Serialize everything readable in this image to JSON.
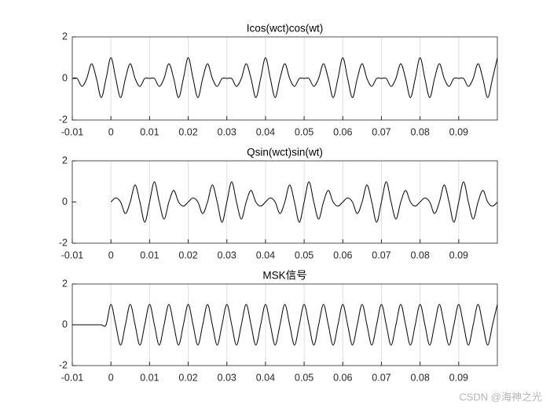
{
  "chart_data": [
    {
      "type": "line",
      "title": "Icos(wct)cos(wt)",
      "x": [
        -0.01,
        -0.00875,
        -0.0075,
        -0.00625,
        -0.005,
        -0.00375,
        -0.0025,
        -0.00125,
        0,
        0.00125,
        0.0025,
        0.00375,
        0.005,
        0.00625,
        0.0075,
        0.00875,
        0.01,
        0.01125,
        0.0125,
        0.01375,
        0.015,
        0.01625,
        0.0175,
        0.01875,
        0.02,
        0.02125,
        0.0225,
        0.02375,
        0.025,
        0.02625,
        0.0275,
        0.02875,
        0.03,
        0.03125,
        0.0325,
        0.03375,
        0.035,
        0.03625,
        0.0375,
        0.03875,
        0.04,
        0.04125,
        0.0425,
        0.04375,
        0.045,
        0.04625,
        0.0475,
        0.04875,
        0.05,
        0.05125,
        0.0525,
        0.05375,
        0.055,
        0.05625,
        0.0575,
        0.05875,
        0.06,
        0.06125,
        0.0625,
        0.06375,
        0.065,
        0.06625,
        0.0675,
        0.06875,
        0.07,
        0.07125,
        0.0725,
        0.07375,
        0.075,
        0.07625,
        0.0775,
        0.07875,
        0.08,
        0.08125,
        0.0825,
        0.08375,
        0.085,
        0.08625,
        0.0875,
        0.08875,
        0.09,
        0.09125,
        0.0925,
        0.09375,
        0.095,
        0.09625,
        0.0975,
        0.09875,
        0.1
      ],
      "series": [
        {
          "color": "#000000",
          "values": [
            0,
            0,
            -0.38,
            0,
            0.71,
            0,
            -0.92,
            0,
            1,
            0,
            -0.92,
            0,
            0.71,
            0,
            -0.38,
            0,
            0,
            0,
            -0.38,
            0,
            0.71,
            0,
            -0.92,
            0,
            1,
            0,
            -0.92,
            0,
            0.71,
            0,
            -0.38,
            0,
            0,
            0,
            -0.38,
            0,
            0.71,
            0,
            -0.92,
            0,
            1,
            0,
            -0.92,
            0,
            0.71,
            0,
            -0.38,
            0,
            0,
            0,
            -0.38,
            0,
            0.71,
            0,
            -0.92,
            0,
            1,
            0,
            -0.92,
            0,
            0.71,
            0,
            -0.38,
            0,
            0,
            0,
            -0.38,
            0,
            0.71,
            0,
            -0.92,
            0,
            1,
            0,
            -0.92,
            0,
            0.71,
            0,
            -0.38,
            0,
            0,
            0,
            -0.38,
            0,
            0.71,
            0,
            -0.92,
            0,
            1
          ]
        }
      ],
      "xlim": [
        -0.01,
        0.1
      ],
      "ylim": [
        -2,
        2
      ],
      "xticks": [
        -0.01,
        0,
        0.01,
        0.02,
        0.03,
        0.04,
        0.05,
        0.06,
        0.07,
        0.08,
        0.09
      ],
      "yticks": [
        -2,
        0,
        2
      ],
      "grid": "x"
    },
    {
      "type": "line",
      "title": "Qsin(wct)sin(wt)",
      "x": [
        -0.01,
        -0.00875,
        -0.0075,
        -0.00625,
        -0.005,
        -0.00375,
        -0.0025,
        -0.00125,
        0,
        0.00125,
        0.0025,
        0.00375,
        0.005,
        0.00625,
        0.0075,
        0.00875,
        0.01,
        0.01125,
        0.0125,
        0.01375,
        0.015,
        0.01625,
        0.0175,
        0.01875,
        0.02,
        0.02125,
        0.0225,
        0.02375,
        0.025,
        0.02625,
        0.0275,
        0.02875,
        0.03,
        0.03125,
        0.0325,
        0.03375,
        0.035,
        0.03625,
        0.0375,
        0.03875,
        0.04,
        0.04125,
        0.0425,
        0.04375,
        0.045,
        0.04625,
        0.0475,
        0.04875,
        0.05,
        0.05125,
        0.0525,
        0.05375,
        0.055,
        0.05625,
        0.0575,
        0.05875,
        0.06,
        0.06125,
        0.0625,
        0.06375,
        0.065,
        0.06625,
        0.0675,
        0.06875,
        0.07,
        0.07125,
        0.0725,
        0.07375,
        0.075,
        0.07625,
        0.0775,
        0.07875,
        0.08,
        0.08125,
        0.0825,
        0.08375,
        0.085,
        0.08625,
        0.0875,
        0.08875,
        0.09,
        0.09125,
        0.0925,
        0.09375,
        0.095,
        0.09625,
        0.0975,
        0.09875,
        0.1
      ],
      "series": [
        {
          "color": "#000000",
          "values": [
            null,
            null,
            null,
            null,
            null,
            null,
            null,
            null,
            0,
            0.2,
            0,
            -0.56,
            0,
            0.83,
            0,
            -0.98,
            0,
            0.98,
            0,
            -0.83,
            0,
            0.56,
            0,
            -0.2,
            0,
            0.2,
            0,
            -0.56,
            0,
            0.83,
            0,
            -0.98,
            0,
            0.98,
            0,
            -0.83,
            0,
            0.56,
            0,
            -0.2,
            0,
            0.2,
            0,
            -0.56,
            0,
            0.83,
            0,
            -0.98,
            0,
            0.98,
            0,
            -0.83,
            0,
            0.56,
            0,
            -0.2,
            0,
            0.2,
            0,
            -0.56,
            0,
            0.83,
            0,
            -0.98,
            0,
            0.98,
            0,
            -0.83,
            0,
            0.56,
            0,
            -0.2,
            0,
            0.2,
            0,
            -0.56,
            0,
            0.83,
            0,
            -0.98,
            0,
            0.98,
            0,
            -0.83,
            0,
            0.56,
            0,
            -0.2,
            0
          ]
        }
      ],
      "xlim": [
        -0.01,
        0.1
      ],
      "ylim": [
        -2,
        2
      ],
      "xticks": [
        -0.01,
        0,
        0.01,
        0.02,
        0.03,
        0.04,
        0.05,
        0.06,
        0.07,
        0.08,
        0.09
      ],
      "yticks": [
        -2,
        0,
        2
      ],
      "grid": "x"
    },
    {
      "type": "line",
      "title": "MSK信号",
      "x": [
        -0.01,
        -0.00875,
        -0.0075,
        -0.00625,
        -0.005,
        -0.00375,
        -0.0025,
        -0.00125,
        0,
        0.00125,
        0.0025,
        0.00375,
        0.005,
        0.00625,
        0.0075,
        0.00875,
        0.01,
        0.01125,
        0.0125,
        0.01375,
        0.015,
        0.01625,
        0.0175,
        0.01875,
        0.02,
        0.02125,
        0.0225,
        0.02375,
        0.025,
        0.02625,
        0.0275,
        0.02875,
        0.03,
        0.03125,
        0.0325,
        0.03375,
        0.035,
        0.03625,
        0.0375,
        0.03875,
        0.04,
        0.04125,
        0.0425,
        0.04375,
        0.045,
        0.04625,
        0.0475,
        0.04875,
        0.05,
        0.05125,
        0.0525,
        0.05375,
        0.055,
        0.05625,
        0.0575,
        0.05875,
        0.06,
        0.06125,
        0.0625,
        0.06375,
        0.065,
        0.06625,
        0.0675,
        0.06875,
        0.07,
        0.07125,
        0.0725,
        0.07375,
        0.075,
        0.07625,
        0.0775,
        0.07875,
        0.08,
        0.08125,
        0.0825,
        0.08375,
        0.085,
        0.08625,
        0.0875,
        0.08875,
        0.09,
        0.09125,
        0.0925,
        0.09375,
        0.095,
        0.09625,
        0.0975,
        0.09875,
        0.1
      ],
      "series": [
        {
          "color": "#000000",
          "values": [
            0,
            0,
            0,
            0,
            0,
            0,
            0,
            0,
            1,
            0,
            -1,
            0,
            1,
            0,
            -1,
            0,
            1,
            0,
            -1,
            0,
            1,
            0,
            -1,
            0,
            1,
            0,
            -1,
            0,
            1,
            0,
            -1,
            0,
            1,
            0,
            -1,
            0,
            1,
            0,
            -1,
            0,
            1,
            0,
            -1,
            0,
            1,
            0,
            -1,
            0,
            1,
            0,
            -1,
            0,
            1,
            0,
            -1,
            0,
            1,
            0,
            -1,
            0,
            1,
            0,
            -1,
            0,
            1,
            0,
            -1,
            0,
            1,
            0,
            -1,
            0,
            1,
            0,
            -1,
            0,
            1,
            0,
            -1,
            0,
            1,
            0,
            -1,
            0,
            1,
            0,
            -1,
            0,
            1
          ]
        }
      ],
      "xlim": [
        -0.01,
        0.1
      ],
      "ylim": [
        -2,
        2
      ],
      "xticks": [
        -0.01,
        0,
        0.01,
        0.02,
        0.03,
        0.04,
        0.05,
        0.06,
        0.07,
        0.08,
        0.09
      ],
      "yticks": [
        -2,
        0,
        2
      ],
      "grid": "x"
    }
  ],
  "watermark": "CSDN @海神之光"
}
